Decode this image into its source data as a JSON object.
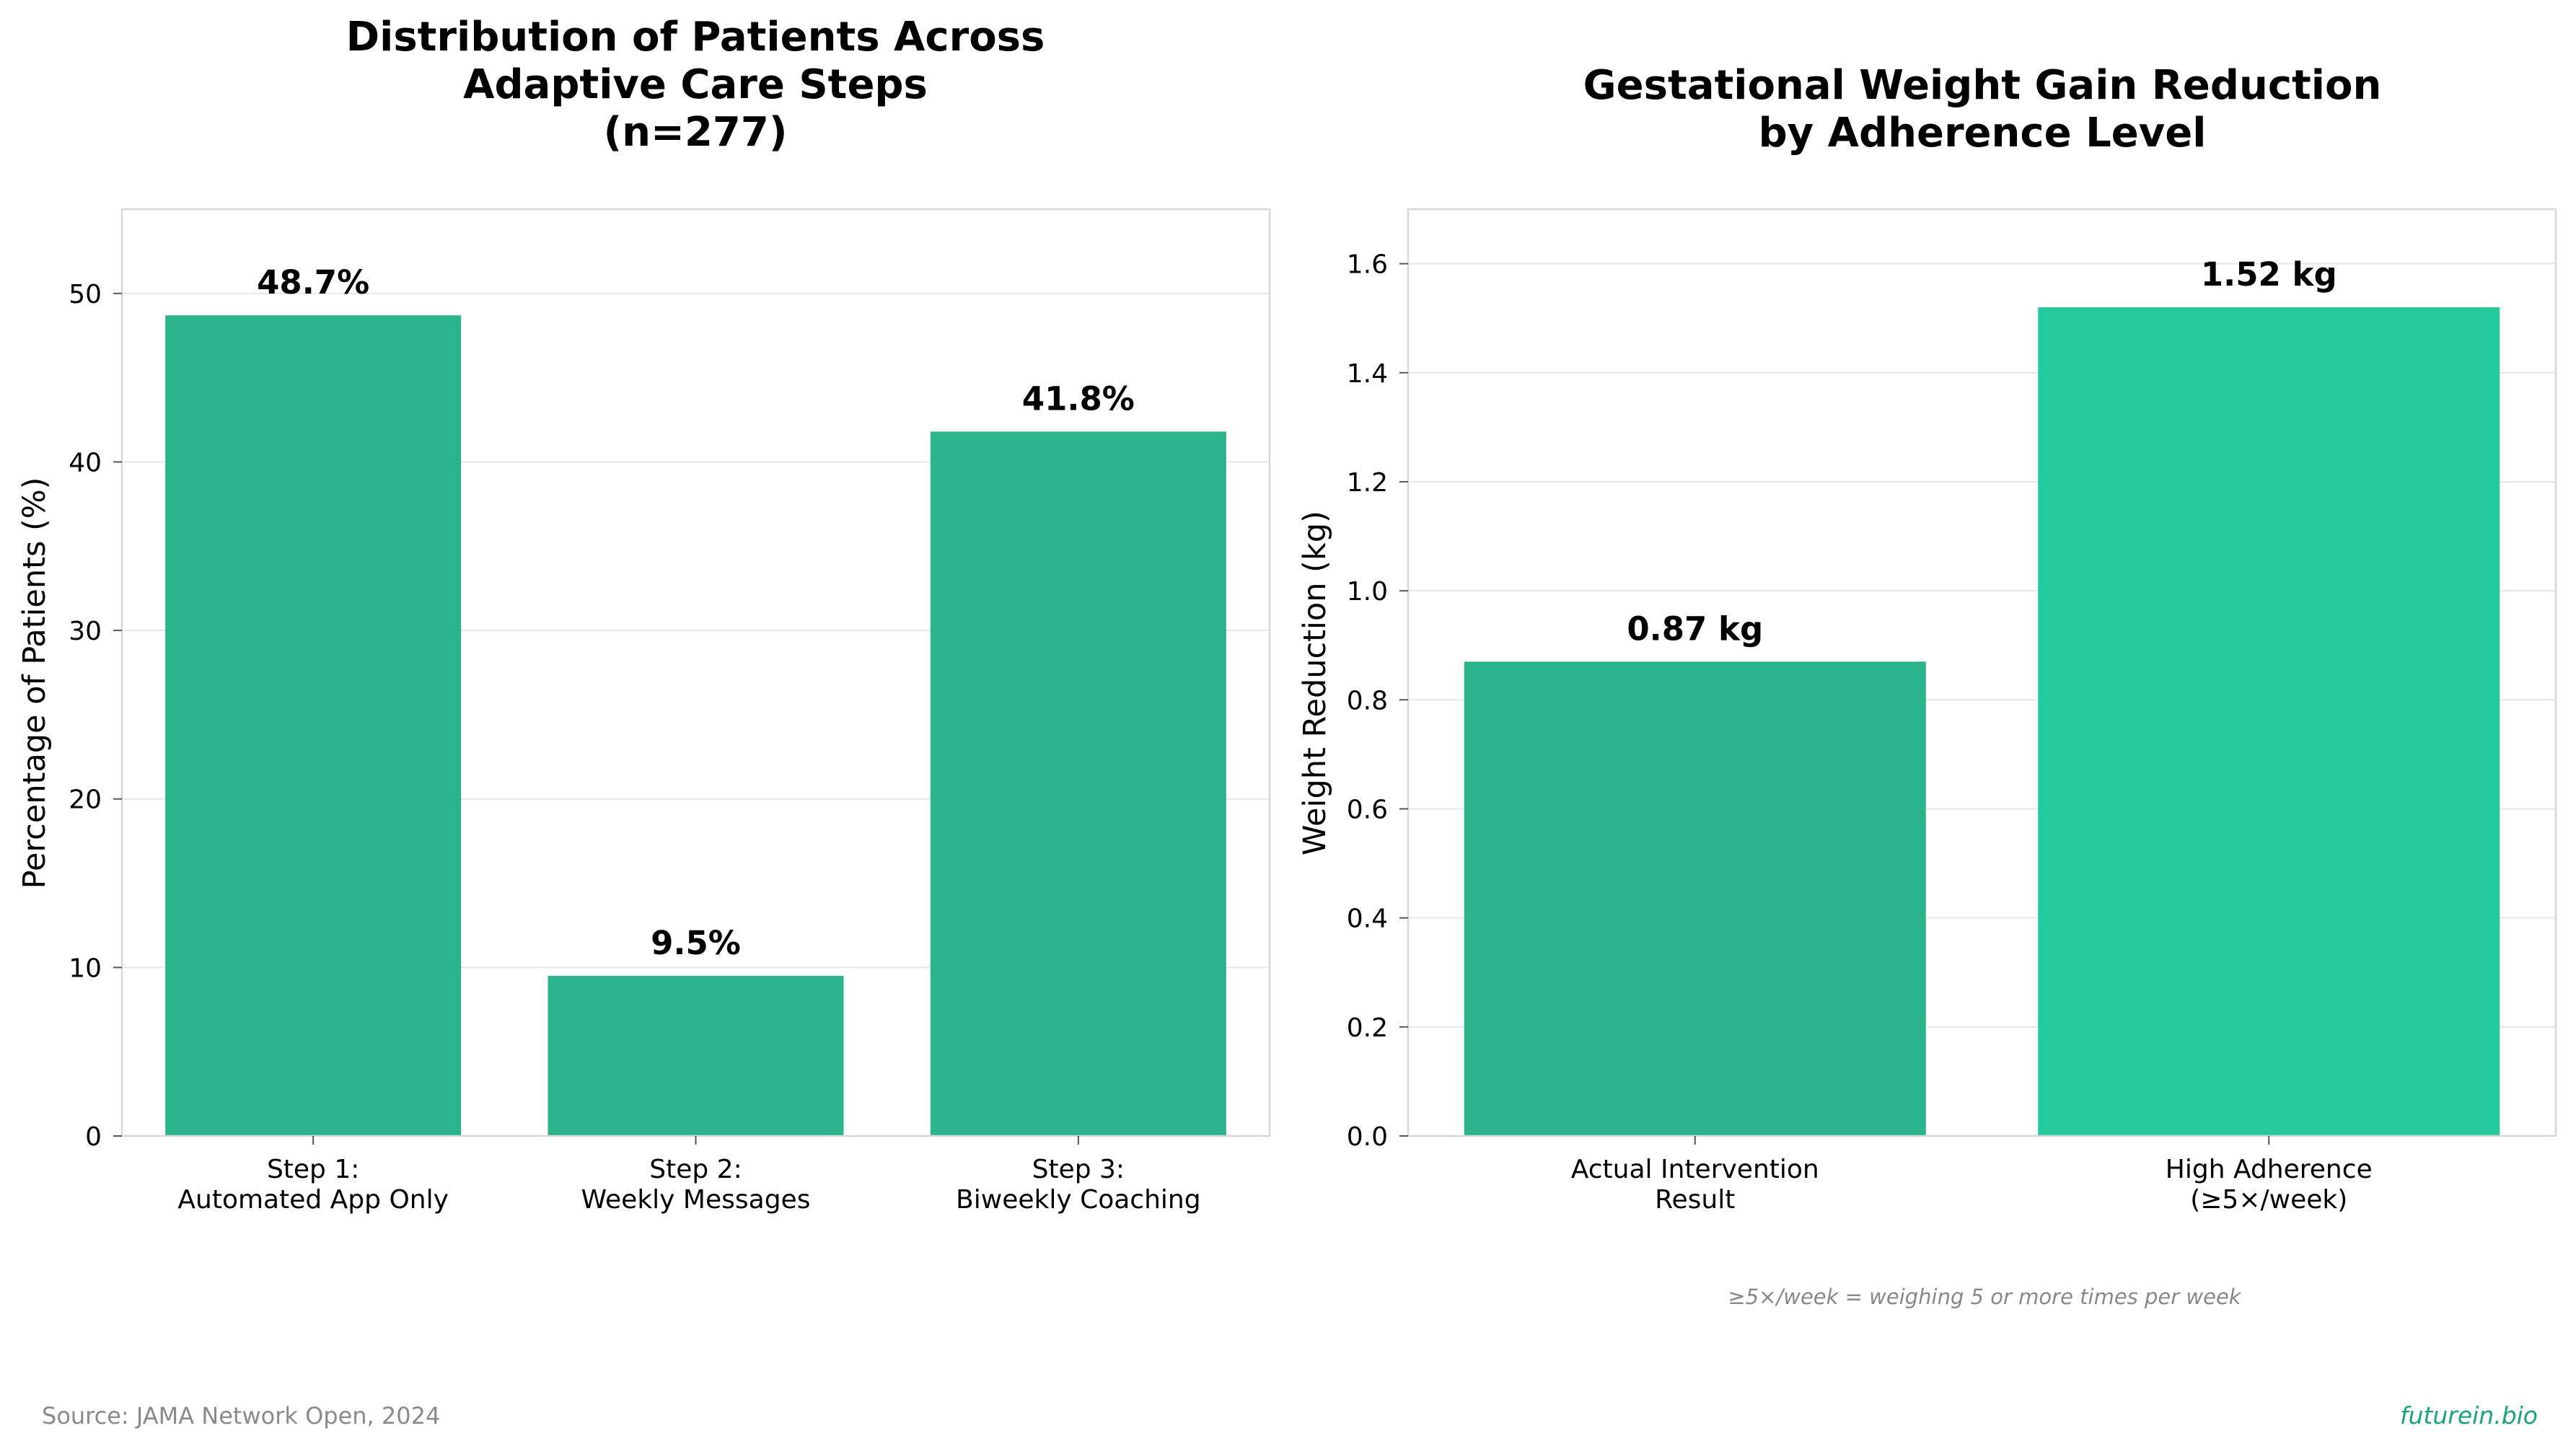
{
  "chart_data": [
    {
      "type": "bar",
      "title_lines": [
        "Distribution of Patients Across",
        "Adaptive Care Steps",
        "(n=277)"
      ],
      "xlabel": "",
      "ylabel": "Percentage of Patients (%)",
      "categories": [
        [
          "Step 1:",
          "Automated App Only"
        ],
        [
          "Step 2:",
          "Weekly Messages"
        ],
        [
          "Step 3:",
          "Biweekly Coaching"
        ]
      ],
      "values": [
        48.7,
        9.5,
        41.8
      ],
      "data_labels": [
        "48.7%",
        "9.5%",
        "41.8%"
      ],
      "ylim": [
        0,
        55
      ],
      "yticks": [
        0,
        10,
        20,
        30,
        40,
        50
      ],
      "ytick_labels": [
        "0",
        "10",
        "20",
        "30",
        "40",
        "50"
      ],
      "colors": [
        "#2bb38c",
        "#2bb38c",
        "#2bb38c"
      ],
      "grid": true
    },
    {
      "type": "bar",
      "title_lines": [
        "Gestational Weight Gain Reduction",
        "by Adherence Level"
      ],
      "xlabel": "",
      "ylabel": "Weight Reduction (kg)",
      "categories": [
        [
          "Actual Intervention",
          "Result"
        ],
        [
          "High Adherence",
          "(≥5×/week)"
        ]
      ],
      "values": [
        0.87,
        1.52
      ],
      "data_labels": [
        "0.87 kg",
        "1.52 kg"
      ],
      "ylim": [
        0,
        1.7
      ],
      "yticks": [
        0,
        0.2,
        0.4,
        0.6,
        0.8,
        1.0,
        1.2,
        1.4,
        1.6
      ],
      "ytick_labels": [
        "0.0",
        "0.2",
        "0.4",
        "0.6",
        "0.8",
        "1.0",
        "1.2",
        "1.4",
        "1.6"
      ],
      "colors": [
        "#2bb38c",
        "#25c99d"
      ],
      "grid": true
    }
  ],
  "footnote": "≥5×/week = weighing 5 or more times per week",
  "source": "Source: JAMA Network Open, 2024",
  "brand": "futurein.bio"
}
